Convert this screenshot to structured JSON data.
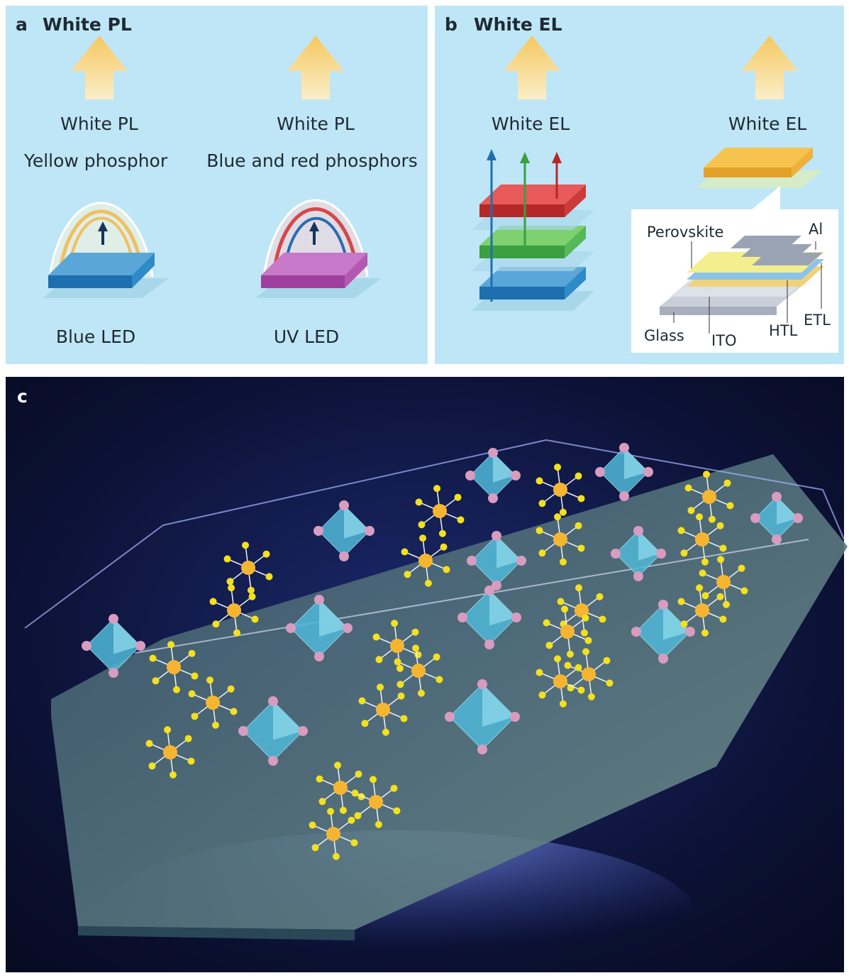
{
  "panel_a": {
    "letter": "a",
    "title": "White PL",
    "left": {
      "output": "White PL",
      "phosphor": "Yellow phosphor",
      "source": "Blue LED"
    },
    "right": {
      "output": "White PL",
      "phosphor": "Blue and red phosphors",
      "source": "UV LED"
    }
  },
  "panel_b": {
    "letter": "b",
    "title": "White EL",
    "left": {
      "output": "White EL"
    },
    "right": {
      "output": "White EL",
      "layers": {
        "perovskite": "Perovskite",
        "al": "Al",
        "glass": "Glass",
        "ito": "ITO",
        "htl": "HTL",
        "etl": "ETL"
      }
    }
  },
  "panel_c": {
    "letter": "c"
  }
}
